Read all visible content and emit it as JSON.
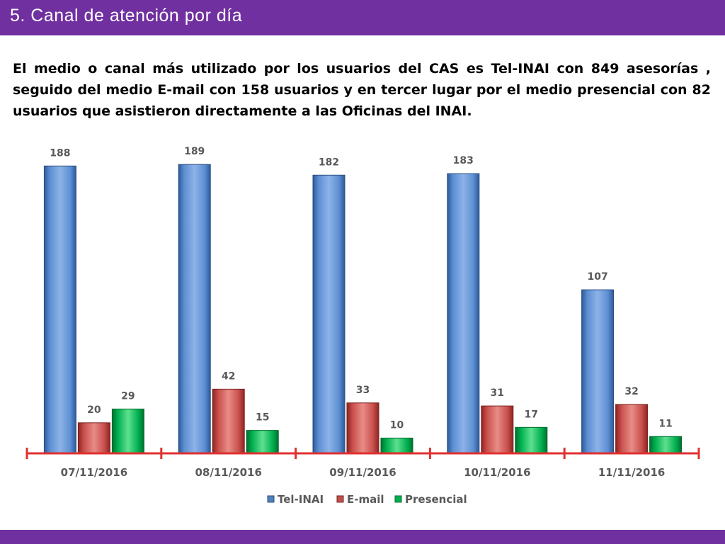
{
  "slide": {
    "title": "5. Canal de atención por día",
    "paragraph": "El medio o canal más utilizado por los usuarios del CAS es Tel-INAI con 849 asesorías , seguido del medio E-mail con 158 usuarios y en tercer lugar por el medio presencial con 82 usuarios que  asistieron directamente a las Oficinas del INAI."
  },
  "colors": {
    "header": "#7030a0",
    "tel_inai": "#4f81bd",
    "email": "#c0504d",
    "presencial": "#00b050",
    "axis": "#e03030",
    "label_text": "#595959"
  },
  "chart_data": {
    "type": "bar",
    "categories": [
      "07/11/2016",
      "08/11/2016",
      "09/11/2016",
      "10/11/2016",
      "11/11/2016"
    ],
    "series": [
      {
        "name": "Tel-INAI",
        "values": [
          188,
          189,
          182,
          183,
          107
        ]
      },
      {
        "name": "E-mail",
        "values": [
          20,
          42,
          33,
          31,
          32
        ]
      },
      {
        "name": "Presencial",
        "values": [
          29,
          15,
          10,
          17,
          11
        ]
      }
    ],
    "title": "",
    "xlabel": "",
    "ylabel": "",
    "ylim": [
      0,
      190
    ],
    "grid": false,
    "data_labels": true,
    "legend": "bottom-center"
  }
}
